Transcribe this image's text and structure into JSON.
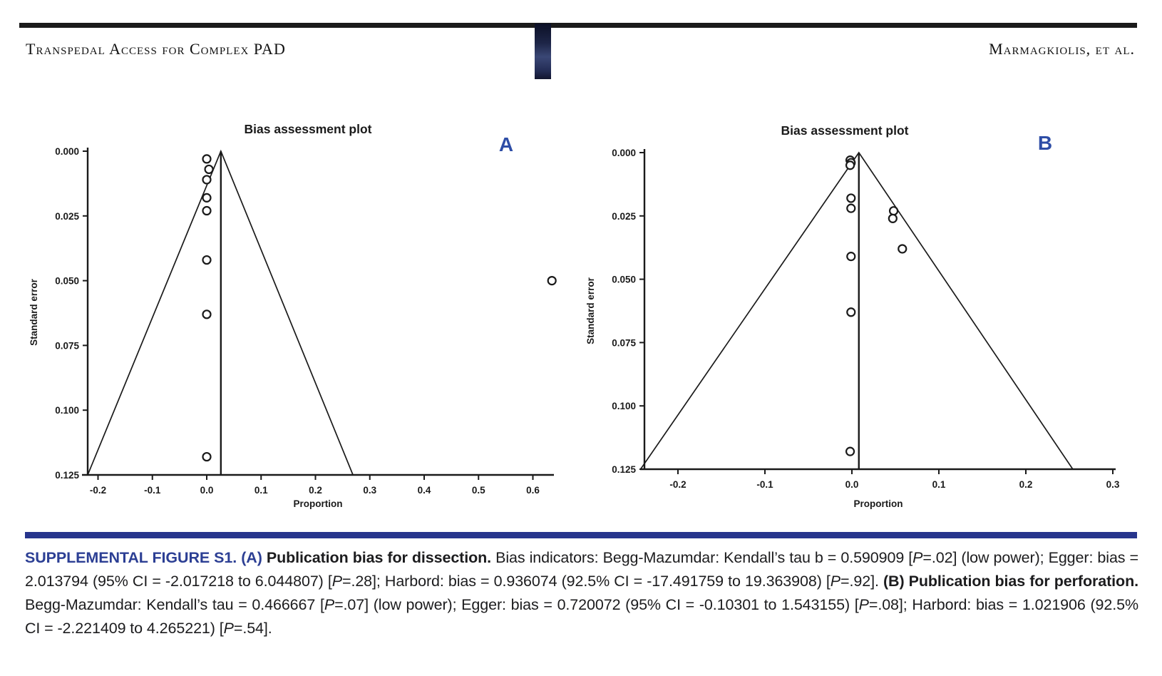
{
  "header": {
    "left_running_title": "Transpedal Access for Complex PAD",
    "right_running_authors": "Marmagkiolis, et al.",
    "rule_color": "#1b1b1b"
  },
  "figure": {
    "panel_label_color": "#2e4da6",
    "line_color": "#1a1a1a"
  },
  "chart_data": [
    {
      "type": "scatter",
      "panel_label": "A",
      "title": "Bias assessment plot",
      "xlabel": "Proportion",
      "ylabel": "Standard error",
      "xlim": [
        -0.225,
        0.64
      ],
      "ylim": [
        0,
        0.125
      ],
      "y_axis_inverted": true,
      "grid": false,
      "xticks": {
        "values": [
          -0.2,
          -0.1,
          0.0,
          0.1,
          0.2,
          0.3,
          0.4,
          0.5,
          0.6
        ],
        "labels": [
          "-0.2",
          "-0.1",
          "0.0",
          "0.1",
          "0.2",
          "0.3",
          "0.4",
          "0.5",
          "0.6"
        ]
      },
      "yticks": {
        "values": [
          0.0,
          0.025,
          0.05,
          0.075,
          0.1,
          0.125
        ],
        "labels": [
          "0.000",
          "0.025",
          "0.050",
          "0.075",
          "0.100",
          "0.125"
        ]
      },
      "pooled_line_x": 0.026,
      "funnel": {
        "apex": [
          0.026,
          0.0
        ],
        "left_base": [
          -0.219,
          0.125
        ],
        "right_base": [
          0.269,
          0.125
        ]
      },
      "points": [
        [
          0.0,
          0.003
        ],
        [
          0.004,
          0.007
        ],
        [
          0.0,
          0.011
        ],
        [
          0.0,
          0.018
        ],
        [
          0.0,
          0.023
        ],
        [
          0.0,
          0.042
        ],
        [
          0.0,
          0.063
        ],
        [
          0.0,
          0.118
        ],
        [
          0.635,
          0.05
        ]
      ]
    },
    {
      "type": "scatter",
      "panel_label": "B",
      "title": "Bias assessment plot",
      "xlabel": "Proportion",
      "ylabel": "Standard error",
      "xlim": [
        -0.243,
        0.3
      ],
      "ylim": [
        0,
        0.125
      ],
      "y_axis_inverted": true,
      "grid": false,
      "xticks": {
        "values": [
          -0.2,
          -0.1,
          0.0,
          0.1,
          0.2,
          0.3
        ],
        "labels": [
          "-0.2",
          "-0.1",
          "0.0",
          "0.1",
          "0.2",
          "0.3"
        ]
      },
      "yticks": {
        "values": [
          0.0,
          0.025,
          0.05,
          0.075,
          0.1,
          0.125
        ],
        "labels": [
          "0.000",
          "0.025",
          "0.050",
          "0.075",
          "0.100",
          "0.125"
        ]
      },
      "pooled_line_x": 0.008,
      "funnel": {
        "apex": [
          0.008,
          0.0
        ],
        "left_base": [
          -0.243,
          0.125
        ],
        "right_base": [
          0.254,
          0.125
        ]
      },
      "points": [
        [
          -0.002,
          0.003
        ],
        [
          -0.001,
          0.004
        ],
        [
          -0.002,
          0.005
        ],
        [
          -0.001,
          0.018
        ],
        [
          -0.001,
          0.022
        ],
        [
          0.048,
          0.023
        ],
        [
          0.047,
          0.026
        ],
        [
          0.058,
          0.038
        ],
        [
          -0.001,
          0.041
        ],
        [
          -0.001,
          0.063
        ],
        [
          -0.002,
          0.118
        ]
      ]
    }
  ],
  "caption": {
    "bar_color": "#27358c",
    "lead_color": "#2c3f94",
    "text_color": "#1c1c1e",
    "segments": [
      {
        "style": "lead",
        "text": "SUPPLEMENTAL FIGURE S1. (A) "
      },
      {
        "style": "bold",
        "text": "Publication bias for dissection. "
      },
      {
        "style": "normal",
        "text": "Bias indicators: Begg-Mazumdar: Kendall’s tau b = 0.590909 [P=.02] (low power); Egger: bias = 2.013794 (95% CI = -2.017218 to 6.044807) [P=.28]; Harbord: bias = 0.936074 (92.5% CI = -17.491759 to 19.363908) [P=.92]. "
      },
      {
        "style": "bold",
        "text": "(B) Publication bias for perforation. "
      },
      {
        "style": "normal",
        "text": "Begg-Mazumdar: Kendall’s tau = 0.466667 [P=.07] (low power); Egger: bias = 0.720072 (95% CI = -0.10301 to 1.543155) [P=.08]; Harbord: bias = 1.021906 (92.5% CI = -2.221409 to 4.265221) [P=.54]."
      }
    ]
  }
}
